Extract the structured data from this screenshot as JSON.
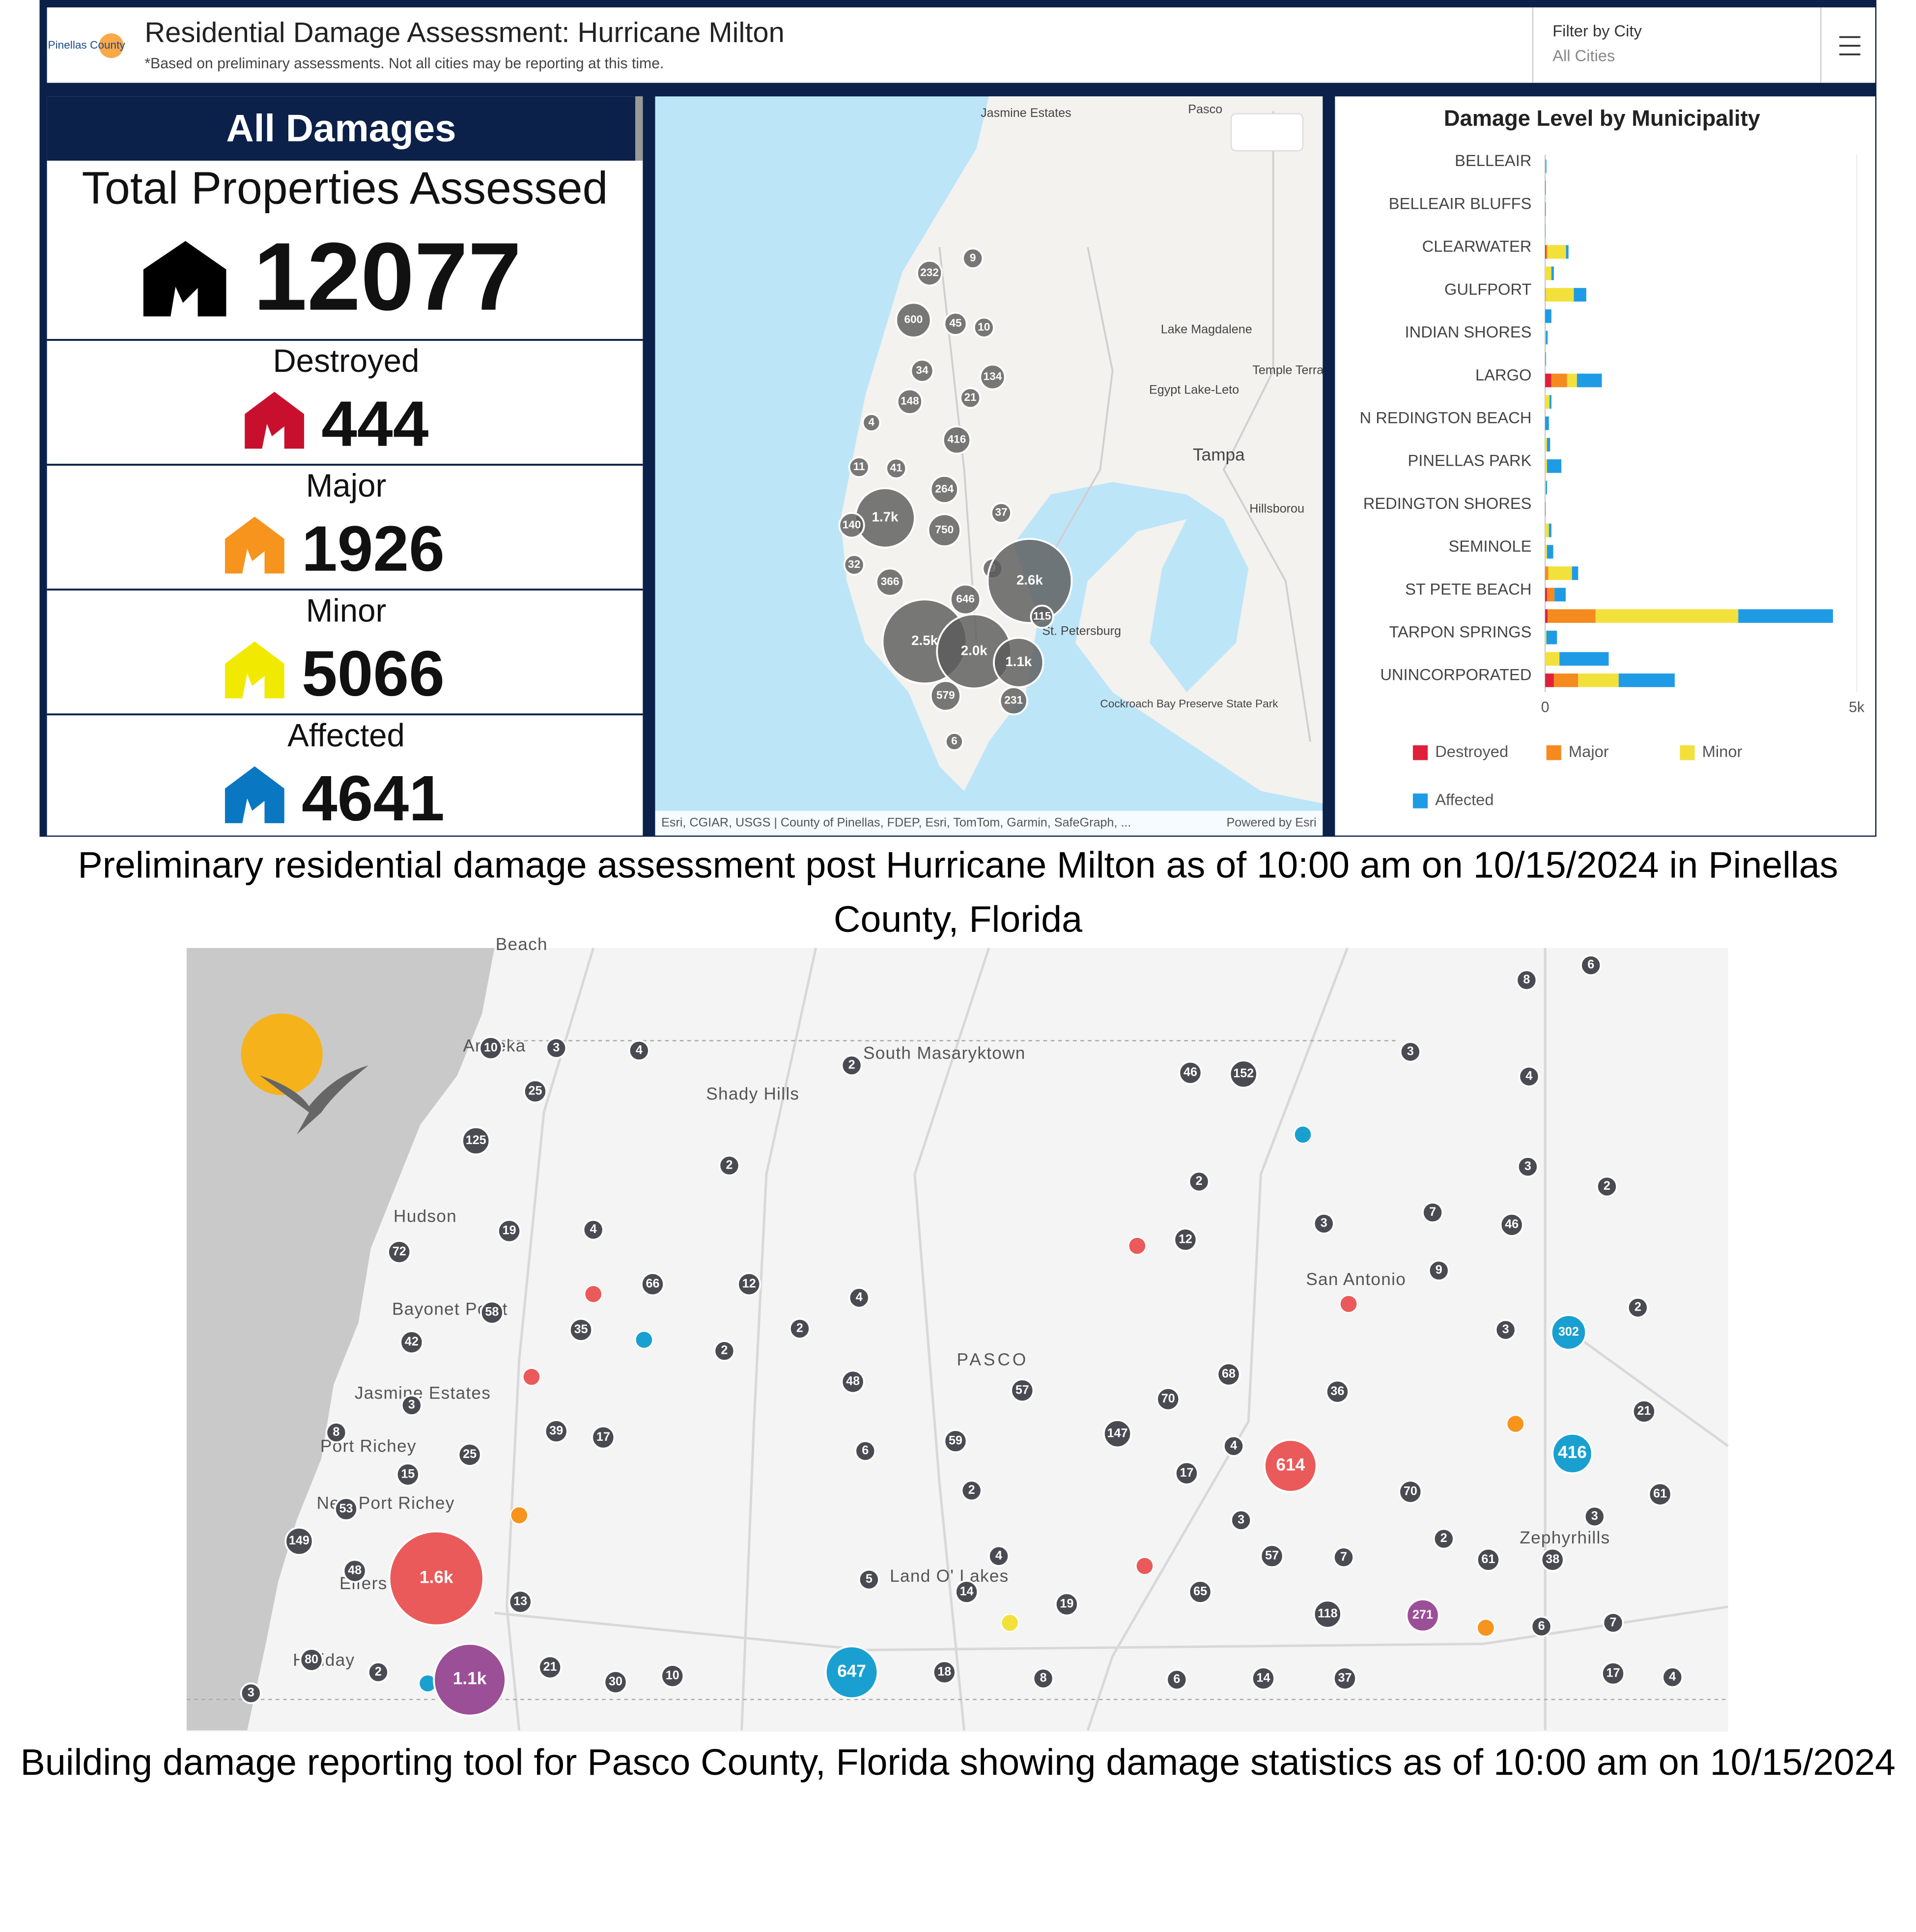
{
  "header": {
    "logo": "Pinellas County",
    "title": "Residential Damage Assessment: Hurricane Milton",
    "subtitle": "*Based on preliminary assessments. Not all cities may be reporting at this time.",
    "filter_label": "Filter by City",
    "filter_value": "All Cities"
  },
  "kpi": {
    "heading": "All Damages",
    "total_label": "Total Properties Assessed",
    "total_value": 12077,
    "items": [
      {
        "label": "Destroyed",
        "value": 444,
        "color": "#c8102e"
      },
      {
        "label": "Major",
        "value": 1926,
        "color": "#f7941d"
      },
      {
        "label": "Minor",
        "value": 5066,
        "color": "#f2e900"
      },
      {
        "label": "Affected",
        "value": 4641,
        "color": "#0a77c2"
      }
    ]
  },
  "map1": {
    "places": [
      "Jasmine Estates",
      "Pasco",
      "Lake Magdalene",
      "Egypt Lake-Leto",
      "Temple Terra",
      "Tampa",
      "Hillsborou",
      "St. Petersburg",
      "Cockroach Bay Preserve State Park"
    ],
    "clusters": [
      232,
      9,
      600,
      45,
      10,
      34,
      134,
      148,
      21,
      4,
      416,
      11,
      41,
      264,
      37,
      "1.7k",
      140,
      750,
      32,
      9,
      "2.6k",
      366,
      646,
      115,
      "2.5k",
      "2.0k",
      "1.1k",
      579,
      231,
      6
    ],
    "attribution": "Esri, CGIAR, USGS | County of Pinellas, FDEP, Esri, TomTom, Garmin, SafeGraph, ...",
    "powered": "Powered by Esri"
  },
  "chart_data": {
    "type": "bar",
    "orientation": "horizontal",
    "stacked": true,
    "title": "Damage Level by Municipality",
    "categories": [
      "BELLEAIR",
      null,
      "BELLEAIR BLUFFS",
      null,
      "CLEARWATER",
      null,
      "GULFPORT",
      null,
      "INDIAN SHORES",
      null,
      "LARGO",
      null,
      "N REDINGTON BEACH",
      null,
      "PINELLAS PARK",
      null,
      "REDINGTON SHORES",
      null,
      "SEMINOLE",
      null,
      "ST PETE BEACH",
      null,
      "TARPON SPRINGS",
      null,
      "UNINCORPORATED"
    ],
    "series": [
      {
        "name": "Destroyed",
        "color": "#e0203a",
        "values": [
          0,
          0,
          0,
          0,
          15,
          0,
          0,
          0,
          0,
          0,
          100,
          0,
          0,
          0,
          0,
          0,
          5,
          0,
          0,
          0,
          30,
          40,
          0,
          0,
          140
        ]
      },
      {
        "name": "Major",
        "color": "#f58a1f",
        "values": [
          0,
          0,
          0,
          0,
          20,
          0,
          10,
          0,
          0,
          0,
          250,
          0,
          0,
          0,
          0,
          0,
          0,
          0,
          0,
          50,
          120,
          770,
          0,
          0,
          390
        ]
      },
      {
        "name": "Minor",
        "color": "#f2e13b",
        "values": [
          5,
          0,
          0,
          0,
          300,
          100,
          450,
          0,
          10,
          5,
          160,
          70,
          0,
          30,
          30,
          10,
          0,
          60,
          30,
          380,
          0,
          2290,
          20,
          230,
          650
        ]
      },
      {
        "name": "Affected",
        "color": "#1f9be5",
        "values": [
          15,
          10,
          10,
          5,
          40,
          40,
          200,
          100,
          30,
          10,
          400,
          30,
          60,
          50,
          230,
          20,
          0,
          40,
          100,
          100,
          180,
          1520,
          170,
          790,
          900
        ]
      }
    ],
    "xlim": [
      0,
      5000
    ],
    "xticks": [
      0,
      {
        "value": 5000,
        "label": "5k"
      }
    ],
    "grid": true,
    "legend": "bottom"
  },
  "caption1": "Preliminary residential damage assessment post Hurricane Milton as of 10:00 am on 10/15/2024 in Pinellas County, Florida",
  "map2": {
    "places": [
      "Beach",
      "Aripeka",
      "South Masaryktown",
      "Shady Hills",
      "Hudson",
      "Bayonet Point",
      "Jasmine Estates",
      "PASCO",
      "San Antonio",
      "Port Richey",
      "New Port Richey",
      "Zephyrhills",
      "Elfers",
      "Land O' Lakes",
      "Holiday"
    ],
    "clusters": [
      {
        "label": 8
      },
      {
        "label": 6
      },
      {
        "label": 10
      },
      {
        "label": 3
      },
      {
        "label": 4
      },
      {
        "label": 2
      },
      {
        "label": 46
      },
      {
        "label": 152
      },
      {
        "label": 3
      },
      {
        "label": 4
      },
      {
        "label": 25
      },
      {
        "label": 125
      },
      {
        "label": 2
      },
      {
        "label": 2
      },
      {
        "label": 3
      },
      {
        "label": 2
      },
      {
        "label": 19
      },
      {
        "label": 4
      },
      {
        "label": 12
      },
      {
        "label": 3
      },
      {
        "label": 7
      },
      {
        "label": 46
      },
      {
        "label": 72
      },
      {
        "label": 66
      },
      {
        "label": 12
      },
      {
        "label": 4
      },
      {
        "label": 9
      },
      {
        "label": 58
      },
      {
        "label": 35
      },
      {
        "label": 2
      },
      {
        "label": 2
      },
      {
        "label": 42
      },
      {
        "label": 3
      },
      {
        "label": 302,
        "color": "#1aa0d0"
      },
      {
        "label": 2
      },
      {
        "label": 48
      },
      {
        "label": 68
      },
      {
        "label": 57
      },
      {
        "label": 70
      },
      {
        "label": 36
      },
      {
        "label": 3
      },
      {
        "label": 8
      },
      {
        "label": 39
      },
      {
        "label": 17
      },
      {
        "label": 25
      },
      {
        "label": 6
      },
      {
        "label": 59
      },
      {
        "label": 147
      },
      {
        "label": 4
      },
      {
        "label": 17
      },
      {
        "label": 614,
        "color": "#ea5a5a"
      },
      {
        "label": 416,
        "color": "#1aa0d0"
      },
      {
        "label": 21
      },
      {
        "label": 15
      },
      {
        "label": 53
      },
      {
        "label": 2
      },
      {
        "label": 70
      },
      {
        "label": 61
      },
      {
        "label": 149
      },
      {
        "label": 3
      },
      {
        "label": 2
      },
      {
        "label": 3
      },
      {
        "label": 61
      },
      {
        "label": 38
      },
      {
        "label": 48
      },
      {
        "label": "1.6k",
        "color": "#ea5a5a"
      },
      {
        "label": 4
      },
      {
        "label": 57
      },
      {
        "label": 7
      },
      {
        "label": 5
      },
      {
        "label": 14
      },
      {
        "label": 65
      },
      {
        "label": 13
      },
      {
        "label": 19
      },
      {
        "label": 118
      },
      {
        "label": 271,
        "color": "#9b4f96"
      },
      {
        "label": 6
      },
      {
        "label": 7
      },
      {
        "label": 80
      },
      {
        "label": 2
      },
      {
        "label": 21
      },
      {
        "label": 30
      },
      {
        "label": 10
      },
      {
        "label": "1.1k",
        "color": "#9b4f96"
      },
      {
        "label": 647,
        "color": "#1aa0d0"
      },
      {
        "label": 18
      },
      {
        "label": 8
      },
      {
        "label": 6
      },
      {
        "label": 14
      },
      {
        "label": 37
      },
      {
        "label": 17
      },
      {
        "label": 4
      },
      {
        "label": 3
      }
    ]
  },
  "caption2": "Building damage reporting tool for Pasco County, Florida showing damage statistics as of 10:00 am on 10/15/2024"
}
